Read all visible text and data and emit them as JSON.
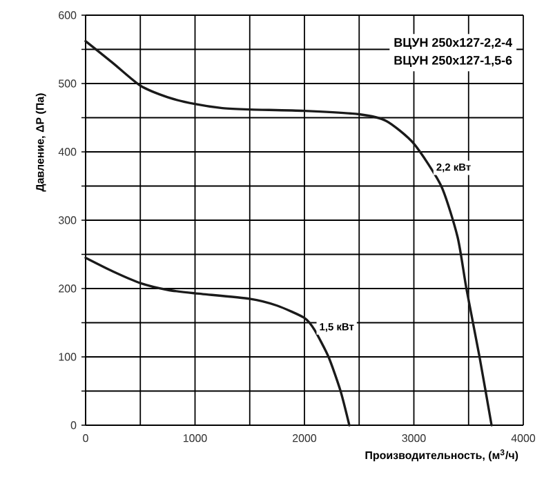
{
  "chart_data": {
    "type": "line",
    "xlabel": "Производительность, (м$^{3}$/ч)",
    "ylabel": "Давление, ΔP (Па)",
    "annotations": [
      "ВЦУН 250x127-2,2-4",
      "ВЦУН 250x127-1,5-6"
    ],
    "xlim": [
      0,
      4000
    ],
    "ylim": [
      0,
      600
    ],
    "xticks": [
      0,
      {
        "value": 500,
        "label": null
      },
      1000,
      {
        "value": 1500,
        "label": null
      },
      2000,
      {
        "value": 2500,
        "label": null
      },
      3000,
      {
        "value": 3500,
        "label": null
      },
      4000
    ],
    "yticks": [
      0,
      {
        "value": 50,
        "label": null
      },
      100,
      {
        "value": 150,
        "label": null
      },
      200,
      {
        "value": 250,
        "label": null
      },
      300,
      {
        "value": 350,
        "label": null
      },
      400,
      {
        "value": 450,
        "label": null
      },
      500,
      {
        "value": 550,
        "label": null
      },
      600
    ],
    "grid": true,
    "marker": "none",
    "line_style": "solid",
    "series": [
      {
        "name": "2,2 кВт",
        "color": "#1a1a1a",
        "x": [
          0,
          250,
          500,
          750,
          1000,
          1250,
          1500,
          2000,
          2500,
          2750,
          3000,
          3250,
          3400,
          3480,
          3600,
          3710
        ],
        "values": [
          562,
          530,
          497,
          480,
          470,
          464,
          462,
          460,
          455,
          445,
          412,
          350,
          275,
          200,
          100,
          0
        ]
      },
      {
        "name": "1,5 кВт",
        "color": "#1a1a1a",
        "x": [
          0,
          250,
          500,
          750,
          1000,
          1500,
          1750,
          2000,
          2090,
          2220,
          2330,
          2410
        ],
        "values": [
          245,
          225,
          208,
          198,
          193,
          185,
          175,
          157,
          140,
          100,
          50,
          0
        ]
      }
    ]
  }
}
